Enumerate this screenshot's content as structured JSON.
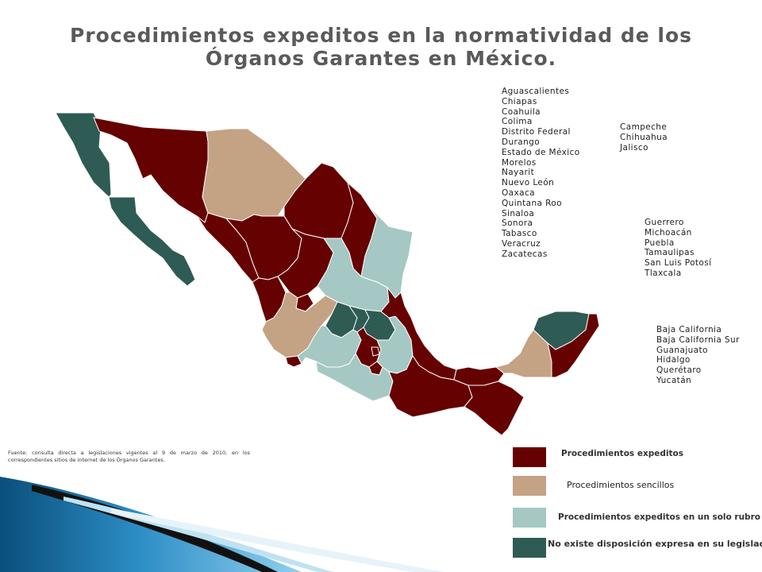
{
  "title": "Procedimientos expeditos en la normatividad de los Órganos Garantes en México.",
  "colors": {
    "expeditos": "#650100",
    "sencillos": "#c4a284",
    "solo_rubro": "#a5c8c4",
    "no_existe": "#2f5b55",
    "border": "#ffffff"
  },
  "groups": {
    "expeditos": [
      "Aguascalientes",
      "Chiapas",
      "Coahuila",
      "Colima",
      "Distrito Federal",
      "Durango",
      "Estado de México",
      "Morelos",
      "Nayarit",
      "Nuevo León",
      "Oaxaca",
      "Quintana Roo",
      "Sinaloa",
      "Sonora",
      "Tabasco",
      "Veracruz",
      "Zacatecas"
    ],
    "sencillos": [
      "Campeche",
      "Chihuahua",
      "Jalisco"
    ],
    "solo_rubro": [
      "Guerrero",
      "Michoacán",
      "Puebla",
      "Tamaulipas",
      "San Luis Potosí",
      "Tlaxcala"
    ],
    "no_existe": [
      "Baja California",
      "Baja California Sur",
      "Guanajuato",
      "Hidalgo",
      "Querétaro",
      "Yucatán"
    ]
  },
  "legend": {
    "expeditos": "Procedimientos expeditos",
    "sencillos": "Procedimientos sencillos",
    "solo_rubro": "Procedimientos expeditos en un solo rubro",
    "no_existe": "No existe disposición expresa en su legislación."
  },
  "source": "Fuente: consulta directa a legislaciones vigentes al 9 de marzo de 2010, en los correspondientes sitios de internet de los Órganos Garantes."
}
